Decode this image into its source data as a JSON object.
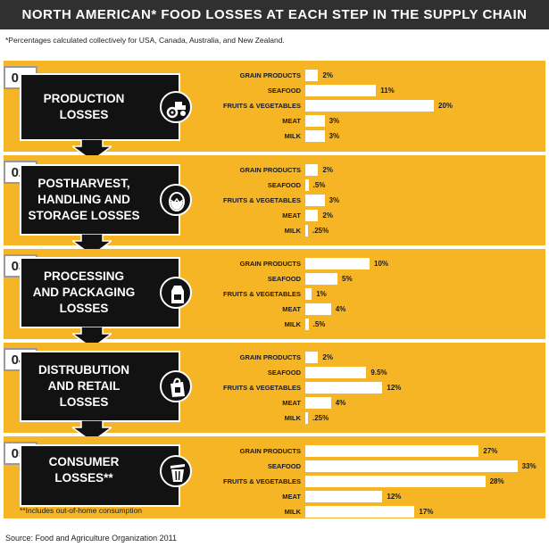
{
  "header": {
    "title": "NORTH AMERICAN* FOOD LOSSES AT EACH STEP IN THE SUPPLY CHAIN"
  },
  "footnote": "*Percentages calculated collectively for USA, Canada, Australia, and New Zealand.",
  "source": "Source: Food and Agriculture Organization 2011",
  "consumer_note": "**Includes out-of-home consumption",
  "colors": {
    "panel": "#f5b524",
    "bar": "#ffffff",
    "block": "#121212",
    "title_bar": "#303030"
  },
  "chart_data": {
    "type": "bar",
    "orientation": "horizontal",
    "title": "NORTH AMERICAN* FOOD LOSSES AT EACH STEP IN THE SUPPLY CHAIN",
    "unit": "%",
    "categories": [
      "GRAIN PRODUCTS",
      "SEAFOOD",
      "FRUITS & VEGETABLES",
      "MEAT",
      "MILK"
    ],
    "stages": [
      {
        "number": "01.",
        "name": "PRODUCTION\nLOSSES",
        "icon": "tractor-icon",
        "values": [
          2,
          11,
          20,
          3,
          3
        ],
        "labels": [
          "2%",
          "11%",
          "20%",
          "3%",
          "3%"
        ]
      },
      {
        "number": "02.",
        "name": "POSTHARVEST,\nHANDLING AND\nSTORAGE LOSSES",
        "icon": "cracked-egg-icon",
        "values": [
          2,
          0.5,
          3,
          2,
          0.25
        ],
        "labels": [
          "2%",
          ".5%",
          "3%",
          "2%",
          ".25%"
        ]
      },
      {
        "number": "03.",
        "name": "PROCESSING\nAND PACKAGING\nLOSSES",
        "icon": "milk-carton-icon",
        "values": [
          10,
          5,
          1,
          4,
          0.5
        ],
        "labels": [
          "10%",
          "5%",
          "1%",
          "4%",
          ".5%"
        ]
      },
      {
        "number": "04.",
        "name": "DISTRUBUTION\nAND RETAIL\nLOSSES",
        "icon": "shopping-bag-icon",
        "values": [
          2,
          9.5,
          12,
          4,
          0.25
        ],
        "labels": [
          "2%",
          "9.5%",
          "12%",
          "4%",
          ".25%"
        ]
      },
      {
        "number": "05.",
        "name": "CONSUMER\nLOSSES**",
        "icon": "trash-can-icon",
        "values": [
          27,
          33,
          28,
          12,
          17
        ],
        "labels": [
          "27%",
          "33%",
          "28%",
          "12%",
          "17%"
        ]
      }
    ]
  }
}
